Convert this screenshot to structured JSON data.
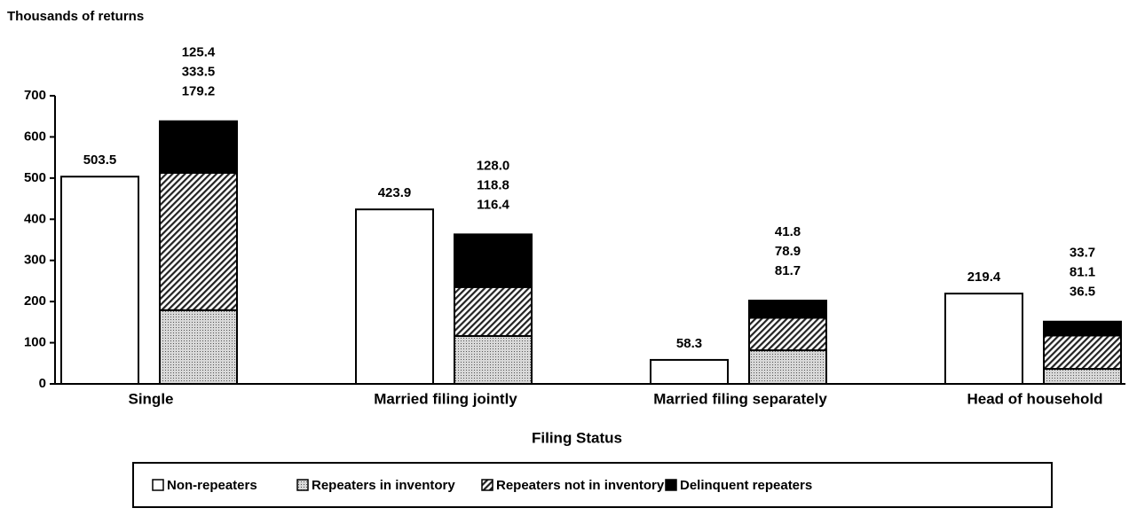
{
  "chart_data": {
    "type": "grouped_stacked_bar",
    "y_label": "Thousands of returns",
    "x_label": "Filing Status",
    "categories": [
      "Single",
      "Married filing jointly",
      "Married filing separately",
      "Head of household"
    ],
    "series": [
      {
        "name": "Non-repeaters",
        "color": "#ffffff",
        "pattern": "none",
        "stack": "single",
        "values": [
          503.5,
          423.9,
          58.3,
          219.4
        ]
      },
      {
        "name": "Repeaters in inventory",
        "color": "#c4c4c4",
        "pattern": "dots",
        "stack": "repeaters",
        "values": [
          179.2,
          116.4,
          81.7,
          36.5
        ]
      },
      {
        "name": "Repeaters not in inventory",
        "color": "#ffffff",
        "pattern": "hatch",
        "stack": "repeaters",
        "values": [
          333.5,
          118.8,
          78.9,
          81.1
        ]
      },
      {
        "name": "Delinquent repeaters",
        "color": "#000000",
        "pattern": "none",
        "stack": "repeaters",
        "values": [
          125.4,
          128,
          41.8,
          33.7
        ],
        "value_labels": [
          "125.4",
          "128.0",
          "41.8",
          "33.7"
        ]
      }
    ],
    "ylim": [
      0,
      700
    ],
    "yticks": [
      0,
      100,
      200,
      300,
      400,
      500,
      600,
      700
    ],
    "grid": false,
    "legend": "bottom"
  }
}
